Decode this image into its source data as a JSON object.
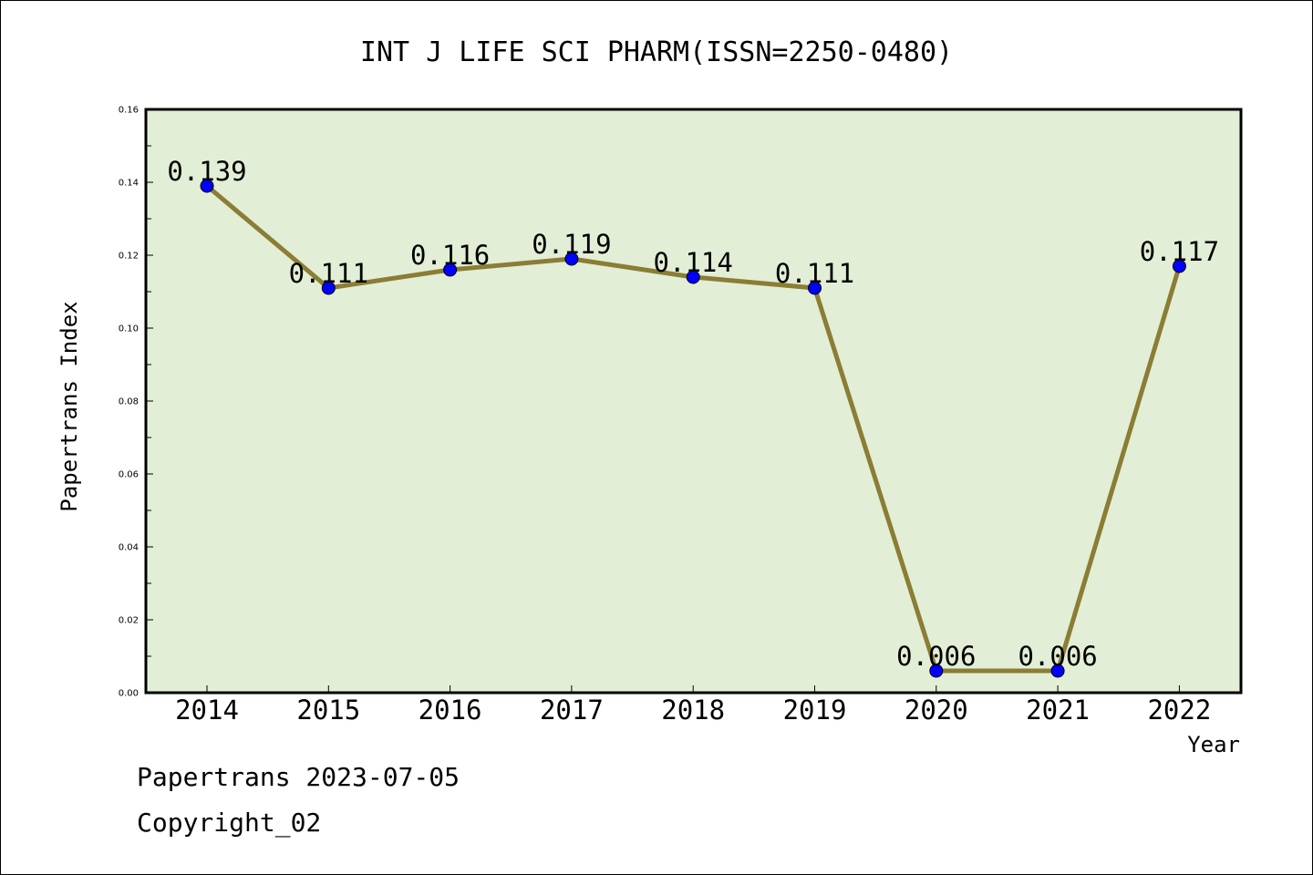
{
  "chart_data": {
    "type": "line",
    "title": "INT J LIFE SCI PHARM(ISSN=2250-0480)",
    "xlabel": "Year",
    "ylabel": "Papertrans Index",
    "categories": [
      "2014",
      "2015",
      "2016",
      "2017",
      "2018",
      "2019",
      "2020",
      "2021",
      "2022"
    ],
    "values": [
      0.139,
      0.111,
      0.116,
      0.119,
      0.114,
      0.111,
      0.006,
      0.006,
      0.117
    ],
    "data_labels": [
      "0.139",
      "0.111",
      "0.116",
      "0.119",
      "0.114",
      "0.111",
      "0.006",
      "0.006",
      "0.117"
    ],
    "ylim": [
      0,
      0.16
    ],
    "yticks": [
      "0.00",
      "0.02",
      "0.04",
      "0.06",
      "0.08",
      "0.10",
      "0.12",
      "0.14",
      "0.16"
    ],
    "grid": false,
    "colors": {
      "plot_background": "#e2efd6",
      "line": "#8b7d35",
      "marker": "#0000ff"
    }
  },
  "footer": {
    "date_line": "Papertrans 2023-07-05",
    "copyright": "Copyright_02"
  }
}
